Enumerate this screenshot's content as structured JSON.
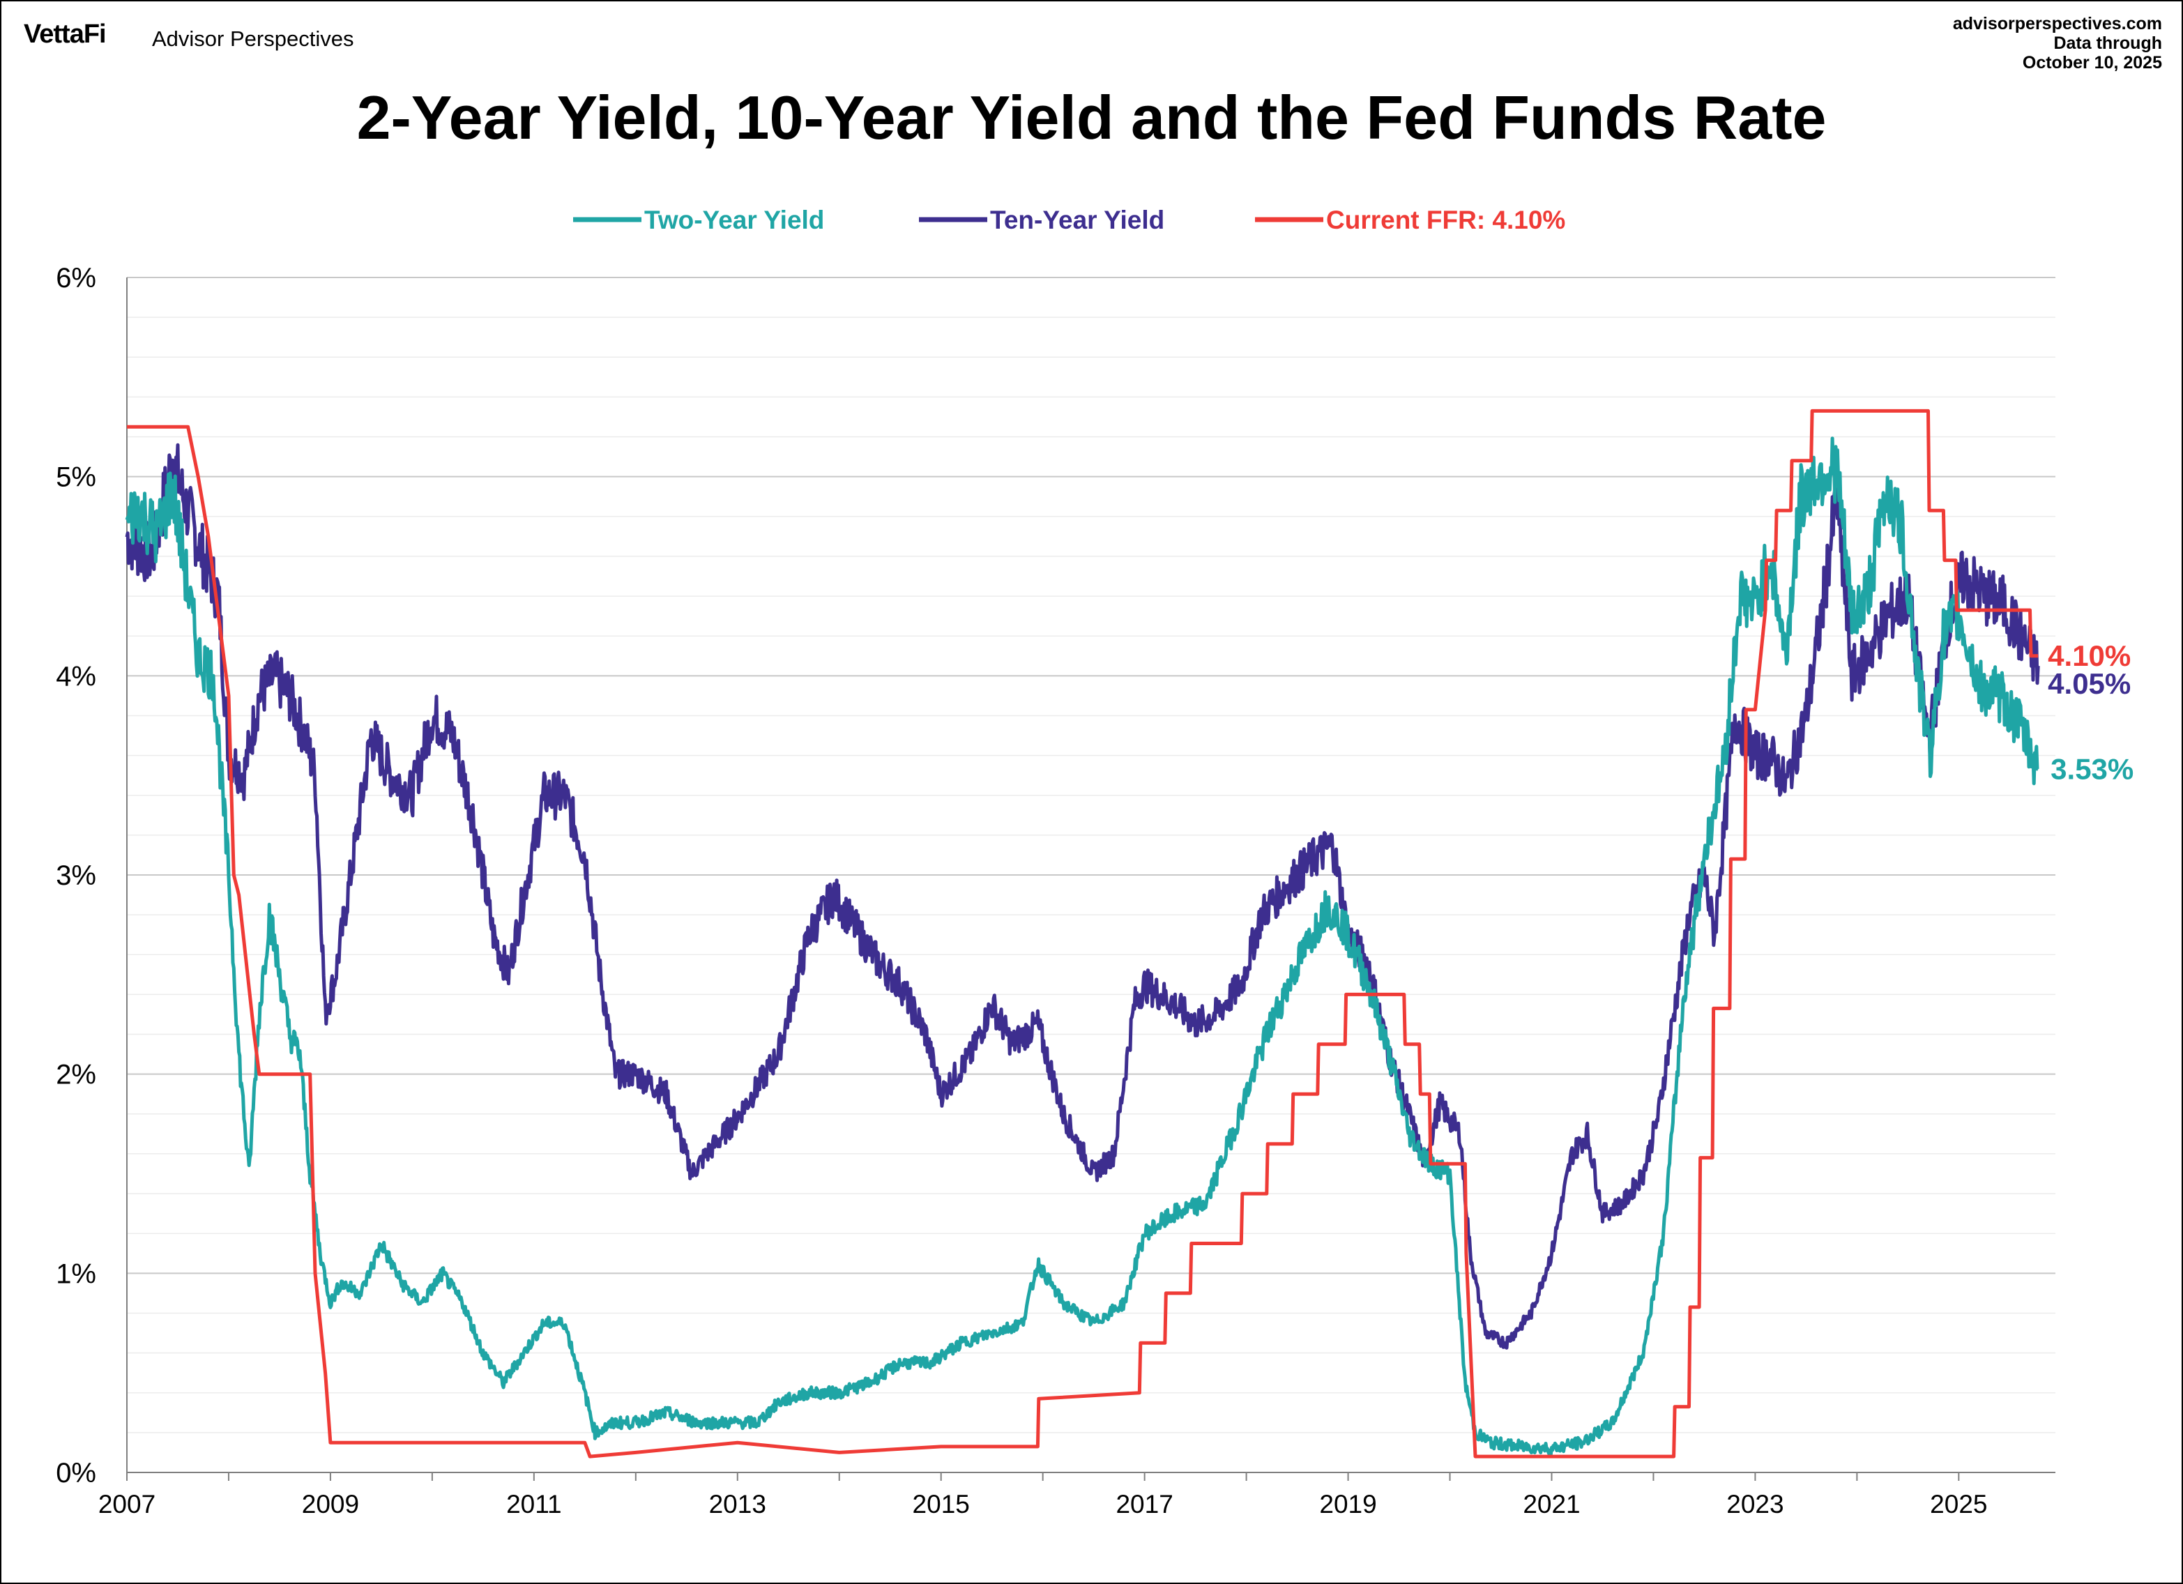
{
  "header": {
    "brand_logo": "VettaFi",
    "brand_name": "Advisor Perspectives",
    "source_url": "advisorperspectives.com",
    "data_through_label": "Data through",
    "data_through_date": "October 10, 2025"
  },
  "chart_data": {
    "type": "line",
    "title": "2-Year Yield, 10-Year Yield and the Fed Funds Rate",
    "xlabel": "",
    "ylabel": "",
    "xlim": [
      2007.0,
      2025.95
    ],
    "ylim": [
      0,
      6
    ],
    "x_tick_labels": [
      "2007",
      "2009",
      "2011",
      "2013",
      "2015",
      "2017",
      "2019",
      "2021",
      "2023",
      "2025"
    ],
    "x_ticks": [
      2007,
      2009,
      2011,
      2013,
      2015,
      2017,
      2019,
      2021,
      2023,
      2025
    ],
    "y_tick_labels": [
      "0%",
      "1%",
      "2%",
      "3%",
      "4%",
      "5%",
      "6%"
    ],
    "y_ticks": [
      0,
      1,
      2,
      3,
      4,
      5,
      6
    ],
    "grid": true,
    "legend_position": "top-center",
    "colors": {
      "two_year": "#1fa5a5",
      "ten_year": "#3d2e8f",
      "ffr": "#ef3b36"
    },
    "legend": [
      "Two-Year Yield",
      "Ten-Year Yield",
      "Current FFR: 4.10%"
    ],
    "end_labels": {
      "ffr": "4.10%",
      "ten_year": "4.05%",
      "two_year": "3.53%"
    },
    "series": [
      {
        "name": "Two-Year Yield",
        "x": [
          2007.0,
          2007.1,
          2007.3,
          2007.45,
          2007.55,
          2007.7,
          2007.85,
          2008.0,
          2008.1,
          2008.2,
          2008.3,
          2008.4,
          2008.5,
          2008.6,
          2008.7,
          2008.8,
          2008.9,
          2009.0,
          2009.1,
          2009.3,
          2009.5,
          2009.7,
          2009.9,
          2010.1,
          2010.3,
          2010.5,
          2010.7,
          2010.9,
          2011.1,
          2011.3,
          2011.5,
          2011.6,
          2011.8,
          2012.0,
          2012.3,
          2012.6,
          2012.9,
          2013.2,
          2013.4,
          2013.7,
          2014.0,
          2014.3,
          2014.6,
          2014.9,
          2015.2,
          2015.5,
          2015.8,
          2015.95,
          2016.2,
          2016.5,
          2016.8,
          2017.0,
          2017.3,
          2017.6,
          2017.9,
          2018.2,
          2018.5,
          2018.8,
          2018.95,
          2019.2,
          2019.4,
          2019.6,
          2019.8,
          2020.0,
          2020.15,
          2020.25,
          2020.4,
          2020.7,
          2021.0,
          2021.3,
          2021.6,
          2021.9,
          2022.1,
          2022.3,
          2022.5,
          2022.7,
          2022.85,
          2023.0,
          2023.15,
          2023.3,
          2023.45,
          2023.6,
          2023.8,
          2023.95,
          2024.1,
          2024.3,
          2024.45,
          2024.6,
          2024.72,
          2024.85,
          2025.0,
          2025.2,
          2025.4,
          2025.6,
          2025.78
        ],
        "y": [
          4.75,
          4.85,
          4.7,
          4.95,
          4.6,
          4.1,
          4.0,
          3.0,
          2.1,
          1.5,
          2.3,
          2.8,
          2.5,
          2.2,
          2.1,
          1.5,
          1.1,
          0.85,
          0.95,
          0.9,
          1.15,
          0.95,
          0.85,
          1.0,
          0.85,
          0.6,
          0.45,
          0.6,
          0.75,
          0.75,
          0.4,
          0.2,
          0.25,
          0.25,
          0.3,
          0.25,
          0.25,
          0.25,
          0.35,
          0.4,
          0.4,
          0.45,
          0.55,
          0.55,
          0.65,
          0.7,
          0.75,
          1.05,
          0.85,
          0.75,
          0.85,
          1.2,
          1.3,
          1.35,
          1.75,
          2.2,
          2.55,
          2.85,
          2.75,
          2.45,
          2.1,
          1.7,
          1.55,
          1.5,
          0.45,
          0.2,
          0.15,
          0.13,
          0.12,
          0.15,
          0.25,
          0.6,
          1.2,
          2.4,
          3.1,
          3.6,
          4.4,
          4.35,
          4.6,
          4.1,
          4.9,
          5.0,
          5.05,
          4.3,
          4.4,
          4.95,
          4.7,
          4.0,
          3.6,
          4.2,
          4.3,
          3.95,
          3.9,
          3.75,
          3.53
        ]
      },
      {
        "name": "Ten-Year Yield",
        "x": [
          2007.0,
          2007.1,
          2007.25,
          2007.45,
          2007.55,
          2007.75,
          2007.9,
          2008.0,
          2008.15,
          2008.3,
          2008.45,
          2008.6,
          2008.75,
          2008.85,
          2008.95,
          2009.05,
          2009.2,
          2009.4,
          2009.6,
          2009.8,
          2010.0,
          2010.2,
          2010.4,
          2010.6,
          2010.75,
          2010.9,
          2011.1,
          2011.3,
          2011.5,
          2011.65,
          2011.8,
          2012.0,
          2012.3,
          2012.55,
          2012.7,
          2012.95,
          2013.15,
          2013.4,
          2013.7,
          2013.95,
          2014.2,
          2014.4,
          2014.6,
          2014.85,
          2015.0,
          2015.3,
          2015.5,
          2015.7,
          2015.95,
          2016.2,
          2016.5,
          2016.7,
          2016.9,
          2017.0,
          2017.3,
          2017.5,
          2017.7,
          2017.95,
          2018.15,
          2018.4,
          2018.7,
          2018.85,
          2019.0,
          2019.2,
          2019.4,
          2019.6,
          2019.75,
          2019.9,
          2020.1,
          2020.2,
          2020.35,
          2020.55,
          2020.8,
          2021.0,
          2021.2,
          2021.35,
          2021.5,
          2021.7,
          2021.9,
          2022.05,
          2022.2,
          2022.35,
          2022.5,
          2022.6,
          2022.8,
          2023.0,
          2023.15,
          2023.3,
          2023.5,
          2023.65,
          2023.8,
          2023.95,
          2024.1,
          2024.3,
          2024.5,
          2024.7,
          2024.75,
          2024.9,
          2025.05,
          2025.25,
          2025.45,
          2025.6,
          2025.78
        ],
        "y": [
          4.7,
          4.65,
          4.6,
          5.1,
          4.9,
          4.6,
          4.4,
          3.6,
          3.5,
          3.9,
          4.0,
          3.9,
          3.7,
          3.5,
          2.3,
          2.5,
          3.0,
          3.7,
          3.5,
          3.4,
          3.8,
          3.7,
          3.3,
          2.7,
          2.5,
          2.9,
          3.4,
          3.4,
          3.1,
          2.5,
          2.0,
          2.0,
          1.9,
          1.5,
          1.6,
          1.75,
          1.9,
          2.1,
          2.7,
          2.9,
          2.7,
          2.55,
          2.45,
          2.2,
          1.9,
          2.1,
          2.35,
          2.15,
          2.25,
          1.8,
          1.5,
          1.6,
          2.35,
          2.45,
          2.35,
          2.25,
          2.3,
          2.45,
          2.8,
          2.95,
          3.1,
          3.15,
          2.7,
          2.55,
          2.1,
          1.8,
          1.55,
          1.85,
          1.7,
          1.1,
          0.7,
          0.65,
          0.8,
          1.1,
          1.6,
          1.7,
          1.3,
          1.35,
          1.5,
          1.8,
          2.3,
          2.8,
          3.0,
          2.7,
          3.8,
          3.6,
          3.6,
          3.45,
          3.8,
          4.3,
          4.9,
          4.0,
          4.1,
          4.3,
          4.4,
          3.7,
          3.8,
          4.3,
          4.5,
          4.4,
          4.35,
          4.2,
          4.05
        ]
      },
      {
        "name": "Current FFR: 4.10%",
        "x": [
          2007.0,
          2007.6,
          2007.7,
          2007.8,
          2007.9,
          2008.0,
          2008.05,
          2008.1,
          2008.25,
          2008.3,
          2008.8,
          2008.85,
          2008.95,
          2009.0,
          2010.0,
          2011.0,
          2011.5,
          2011.55,
          2012.0,
          2013.0,
          2014.0,
          2015.0,
          2015.95,
          2015.96,
          2016.95,
          2016.96,
          2017.2,
          2017.21,
          2017.45,
          2017.46,
          2017.95,
          2017.96,
          2018.2,
          2018.21,
          2018.45,
          2018.46,
          2018.7,
          2018.71,
          2018.97,
          2018.98,
          2019.55,
          2019.56,
          2019.7,
          2019.71,
          2019.8,
          2019.81,
          2020.15,
          2020.16,
          2020.25,
          2021.0,
          2022.0,
          2022.2,
          2022.21,
          2022.35,
          2022.36,
          2022.45,
          2022.46,
          2022.58,
          2022.59,
          2022.75,
          2022.76,
          2022.9,
          2022.91,
          2023.0,
          2023.1,
          2023.11,
          2023.2,
          2023.21,
          2023.35,
          2023.36,
          2023.55,
          2023.56,
          2024.7,
          2024.71,
          2024.85,
          2024.86,
          2024.97,
          2024.98,
          2025.7,
          2025.71,
          2025.78
        ],
        "y": [
          5.25,
          5.25,
          5.0,
          4.7,
          4.3,
          3.9,
          3.0,
          2.9,
          2.2,
          2.0,
          2.0,
          1.0,
          0.5,
          0.15,
          0.15,
          0.15,
          0.15,
          0.08,
          0.1,
          0.15,
          0.1,
          0.13,
          0.13,
          0.37,
          0.4,
          0.65,
          0.65,
          0.9,
          0.9,
          1.15,
          1.15,
          1.4,
          1.4,
          1.65,
          1.65,
          1.9,
          1.9,
          2.15,
          2.15,
          2.4,
          2.4,
          2.15,
          2.15,
          1.9,
          1.9,
          1.55,
          1.55,
          1.1,
          0.08,
          0.08,
          0.08,
          0.08,
          0.33,
          0.33,
          0.83,
          0.83,
          1.58,
          1.58,
          2.33,
          2.33,
          3.08,
          3.08,
          3.83,
          3.83,
          4.33,
          4.58,
          4.58,
          4.83,
          4.83,
          5.08,
          5.08,
          5.33,
          5.33,
          4.83,
          4.83,
          4.58,
          4.58,
          4.33,
          4.33,
          4.1,
          4.1
        ]
      }
    ]
  }
}
